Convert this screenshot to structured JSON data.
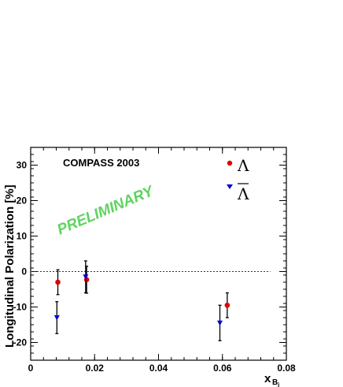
{
  "chart_data": {
    "type": "scatter",
    "title": "",
    "xlabel": "x",
    "xlabel_sub": "B",
    "xlabel_subsub": "j",
    "ylabel": "Longitudinal Polarization [%]",
    "xlim": [
      0,
      0.08
    ],
    "ylim": [
      -25,
      35
    ],
    "xticks": [
      0,
      0.02,
      0.04,
      0.06,
      0.08
    ],
    "xtick_labels": [
      "0",
      "0.02",
      "0.04",
      "0.06",
      "0.08"
    ],
    "yticks": [
      -20,
      -10,
      0,
      10,
      20,
      30
    ],
    "ytick_labels": [
      "-20",
      "-10",
      "0",
      "10",
      "20",
      "30"
    ],
    "zero_line": true,
    "grid": false,
    "legend_position": "top-right",
    "annotations": {
      "experiment": "COMPASS 2003",
      "watermark": "PRELIMINARY",
      "watermark_color": "#5fd35f"
    },
    "series": [
      {
        "name": "Λ",
        "color": "#e00000",
        "marker": "circle",
        "x": [
          0.0085,
          0.0175,
          0.0615
        ],
        "y": [
          -3.0,
          -2.3,
          -9.5
        ],
        "err": [
          3.5,
          3.8,
          3.5
        ]
      },
      {
        "name": "Λ̄",
        "color": "#0000d0",
        "marker": "triangle-down",
        "x": [
          0.0082,
          0.0172,
          0.0592
        ],
        "y": [
          -13.0,
          -1.5,
          -14.5
        ],
        "err": [
          4.5,
          4.5,
          5.0
        ]
      }
    ]
  }
}
